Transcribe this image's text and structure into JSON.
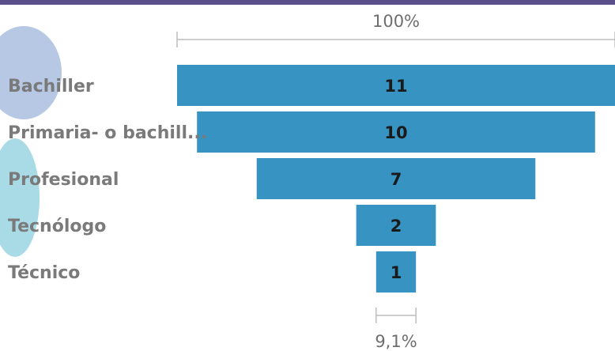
{
  "chart_data": {
    "type": "bar",
    "subtype": "funnel",
    "categories": [
      "Bachiller",
      "Primaria- o bachill...",
      "Profesional",
      "Tecnólogo",
      "Técnico"
    ],
    "values": [
      11,
      10,
      7,
      2,
      1
    ],
    "top_percent_label": "100%",
    "bottom_percent_label": "9,1%",
    "bar_color": "#3793c1",
    "grid": false,
    "legend": false
  },
  "colors": {
    "header_band": "#5b4f8c",
    "bar": "#3793c1",
    "category_text": "#7a7a7a",
    "value_text": "#1a1a1a",
    "bracket": "#bdbdbd"
  }
}
